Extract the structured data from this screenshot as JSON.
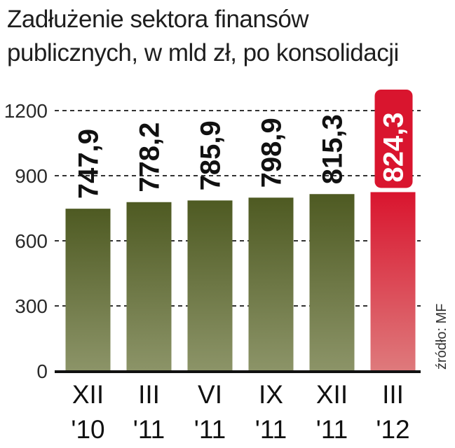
{
  "title_lines": [
    "Zadłużenie sektora finansów",
    "publicznych, w mld zł, po konsolidacji"
  ],
  "source": "źródło: MF",
  "colors": {
    "bar_top": "#4e5a22",
    "bar_bottom": "#8c9468",
    "highlight_top": "#d9152e",
    "highlight_bottom": "#de7a7c",
    "highlight_badge": "#d9152e",
    "grid": "#333333",
    "axis": "#111111"
  },
  "chart_data": {
    "type": "bar",
    "title": "Zadłużenie sektora finansów publicznych, w mld zł, po konsolidacji",
    "categories": [
      {
        "line1": "XII",
        "line2": "'10"
      },
      {
        "line1": "III",
        "line2": "'11"
      },
      {
        "line1": "VI",
        "line2": "'11"
      },
      {
        "line1": "IX",
        "line2": "'11"
      },
      {
        "line1": "XII",
        "line2": "'11"
      },
      {
        "line1": "III",
        "line2": "'12"
      }
    ],
    "values": [
      747.9,
      778.2,
      785.9,
      798.9,
      815.3,
      824.3
    ],
    "value_labels": [
      "747,9",
      "778,2",
      "785,9",
      "798,9",
      "815,3",
      "824,3"
    ],
    "highlight_index": 5,
    "yticks": [
      0,
      300,
      600,
      900,
      1200
    ],
    "ylim": [
      0,
      1200
    ],
    "grid": true,
    "grid_style": "dashed"
  }
}
